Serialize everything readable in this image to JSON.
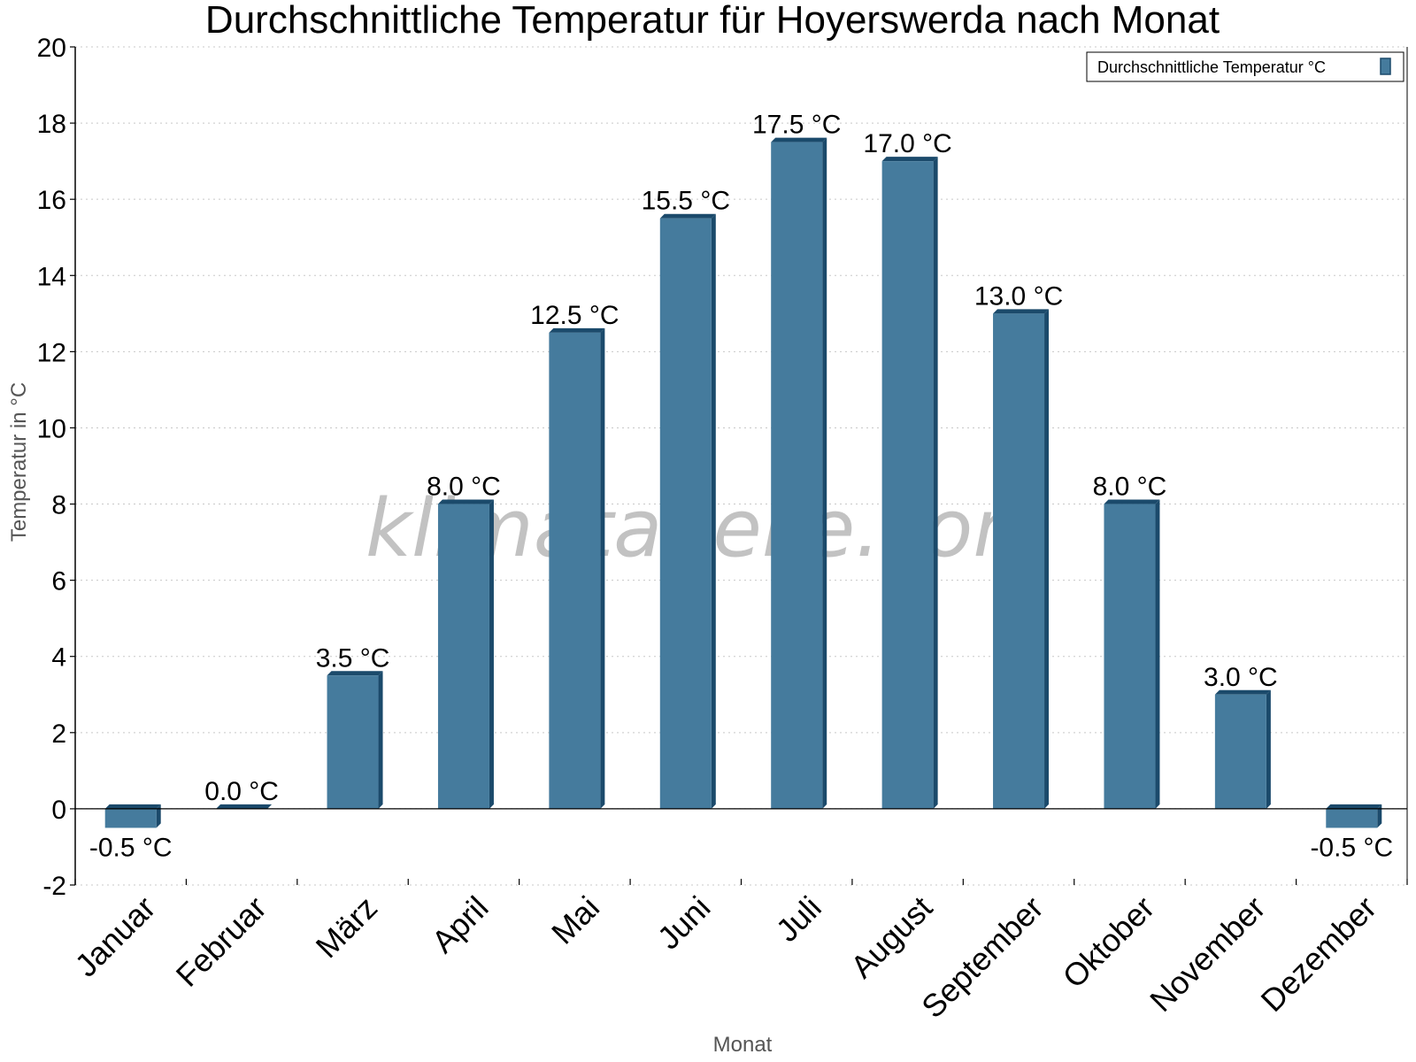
{
  "watermark": "klimatabelle.com",
  "chart_data": {
    "type": "bar",
    "title": "Durchschnittliche Temperatur für Hoyerswerda nach Monat",
    "xlabel": "Monat",
    "ylabel": "Temperatur in °C",
    "ylim": [
      -2,
      20
    ],
    "yticks": [
      "-2",
      "0",
      "2",
      "4",
      "6",
      "8",
      "10",
      "12",
      "14",
      "16",
      "18",
      "20"
    ],
    "grid": true,
    "legend_position": "top-right",
    "categories": [
      "Januar",
      "Februar",
      "März",
      "April",
      "Mai",
      "Juni",
      "Juli",
      "August",
      "September",
      "Oktober",
      "November",
      "Dezember"
    ],
    "series": [
      {
        "name": "Durchschnittliche Temperatur °C",
        "color": "#457b9d",
        "values": [
          -0.5,
          0.0,
          3.5,
          8.0,
          12.5,
          15.5,
          17.5,
          17.0,
          13.0,
          8.0,
          3.0,
          -0.5
        ],
        "labels": [
          "-0.5 °C",
          "0.0 °C",
          "3.5 °C",
          "8.0 °C",
          "12.5 °C",
          "15.5 °C",
          "17.5 °C",
          "17.0 °C",
          "13.0 °C",
          "8.0 °C",
          "3.0 °C",
          "-0.5 °C"
        ]
      }
    ]
  }
}
